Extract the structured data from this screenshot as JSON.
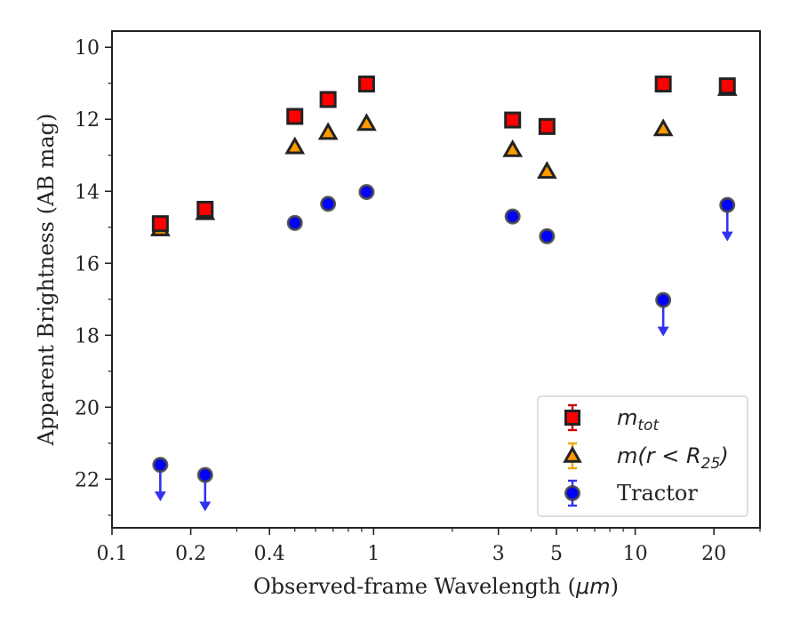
{
  "chart_data": {
    "type": "scatter",
    "title": "",
    "xlabel": "Observed-frame Wavelength (",
    "xlabel_unit": "μm",
    "xlabel_close": ")",
    "ylabel": "Apparent Brightness (AB mag)",
    "x_scale": "log",
    "y_inverted": true,
    "xlim": [
      0.1,
      30
    ],
    "ylim": [
      23.35,
      9.55
    ],
    "x_ticks": [
      {
        "value": 0.1,
        "label": "0.1"
      },
      {
        "value": 0.2,
        "label": "0.2"
      },
      {
        "value": 0.4,
        "label": "0.4"
      },
      {
        "value": 1,
        "label": "1"
      },
      {
        "value": 3,
        "label": "3"
      },
      {
        "value": 5,
        "label": "5"
      },
      {
        "value": 10,
        "label": "10"
      },
      {
        "value": 20,
        "label": "20"
      }
    ],
    "x_minor_ticks": [
      0.3,
      0.5,
      0.6,
      0.7,
      0.8,
      0.9,
      2,
      4,
      6,
      7,
      8,
      9,
      30
    ],
    "y_ticks": [
      {
        "value": 10,
        "label": "10"
      },
      {
        "value": 12,
        "label": "12"
      },
      {
        "value": 14,
        "label": "14"
      },
      {
        "value": 16,
        "label": "16"
      },
      {
        "value": 18,
        "label": "18"
      },
      {
        "value": 20,
        "label": "20"
      },
      {
        "value": 22,
        "label": "22"
      }
    ],
    "y_minor_ticks": [
      11,
      13,
      15,
      17,
      19,
      21,
      23
    ],
    "legend_position": "lower-right",
    "series": [
      {
        "key": "mtot",
        "legend_base": "m",
        "legend_sub": "tot",
        "marker": "square",
        "color": "#ff0000",
        "edge_color": "#222222",
        "errbar_color": "#cc0000",
        "points": [
          {
            "x": 0.153,
            "y": 14.9
          },
          {
            "x": 0.227,
            "y": 14.5
          },
          {
            "x": 0.5,
            "y": 11.92
          },
          {
            "x": 0.67,
            "y": 11.45
          },
          {
            "x": 0.94,
            "y": 11.02
          },
          {
            "x": 3.4,
            "y": 12.02
          },
          {
            "x": 4.6,
            "y": 12.2
          },
          {
            "x": 12.8,
            "y": 11.02
          },
          {
            "x": 22.5,
            "y": 11.07
          }
        ]
      },
      {
        "key": "mr25",
        "legend_base": "m",
        "legend_mid": "(r < R",
        "legend_sub": "25",
        "legend_end": ")",
        "marker": "triangle",
        "color": "#ff9900",
        "edge_color": "#222222",
        "errbar_color": "#f0a500",
        "points": [
          {
            "x": 0.153,
            "y": 15.05
          },
          {
            "x": 0.227,
            "y": 14.6
          },
          {
            "x": 0.5,
            "y": 12.77
          },
          {
            "x": 0.67,
            "y": 12.37
          },
          {
            "x": 0.94,
            "y": 12.12
          },
          {
            "x": 3.4,
            "y": 12.85
          },
          {
            "x": 4.6,
            "y": 13.45
          },
          {
            "x": 12.8,
            "y": 12.27
          },
          {
            "x": 22.5,
            "y": 11.15
          }
        ]
      },
      {
        "key": "tractor",
        "legend_label": "Tractor",
        "marker": "circle",
        "color": "#0000ff",
        "edge_color": "#444444",
        "errbar_color": "#3333ee",
        "points": [
          {
            "x": 0.153,
            "y": 21.6,
            "upper_limit": true
          },
          {
            "x": 0.227,
            "y": 21.88,
            "upper_limit": true
          },
          {
            "x": 0.5,
            "y": 14.88
          },
          {
            "x": 0.67,
            "y": 14.35
          },
          {
            "x": 0.94,
            "y": 14.02
          },
          {
            "x": 3.4,
            "y": 14.7
          },
          {
            "x": 4.6,
            "y": 15.25
          },
          {
            "x": 12.8,
            "y": 17.02,
            "upper_limit": true
          },
          {
            "x": 22.5,
            "y": 14.38,
            "upper_limit": true
          }
        ]
      }
    ]
  }
}
